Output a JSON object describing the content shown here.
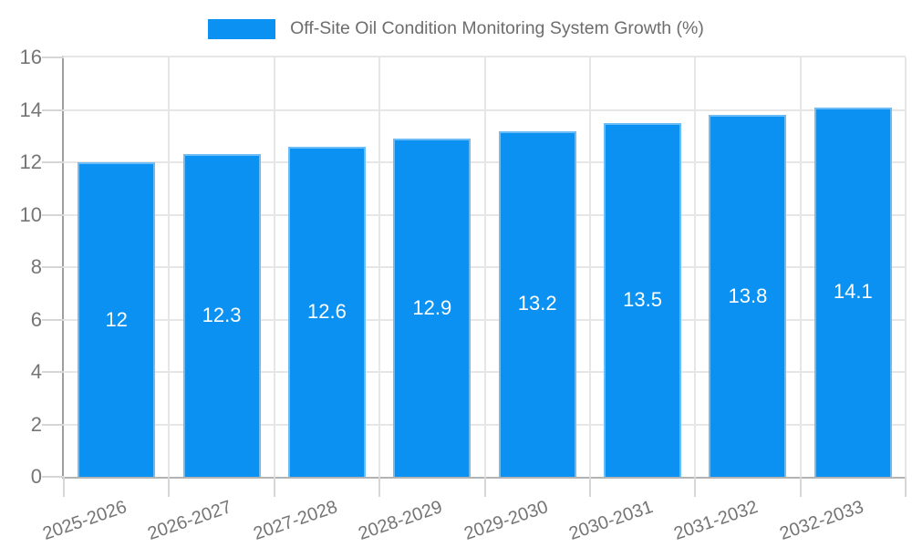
{
  "chart_data": {
    "type": "bar",
    "title": "Off-Site Oil Condition Monitoring System Growth (%)",
    "legend": {
      "label": "Off-Site Oil Condition Monitoring System Growth (%)",
      "position": "top"
    },
    "categories": [
      "2025-2026",
      "2026-2027",
      "2027-2028",
      "2028-2029",
      "2029-2030",
      "2030-2031",
      "2031-2032",
      "2032-2033"
    ],
    "values": [
      12,
      12.3,
      12.6,
      12.9,
      13.2,
      13.5,
      13.8,
      14.1
    ],
    "value_labels": [
      "12",
      "12.3",
      "12.6",
      "12.9",
      "13.2",
      "13.5",
      "13.8",
      "14.1"
    ],
    "xlabel": "",
    "ylabel": "",
    "ylim": [
      0,
      16
    ],
    "ytick_step": 2,
    "yticks": [
      0,
      2,
      4,
      6,
      8,
      10,
      12,
      14,
      16
    ],
    "grid": true,
    "x_label_rotation_deg": -19,
    "colors": {
      "bar": "#0a91f2",
      "bar_border": "#6cbcf8",
      "value_label": "#ffffff",
      "axis_text": "#757575",
      "legend_text": "#6d6d6d",
      "gridline": "#e6e6e6",
      "y_axis_line": "#9e9e9e",
      "x_axis_line": "#b3b3b3"
    }
  }
}
